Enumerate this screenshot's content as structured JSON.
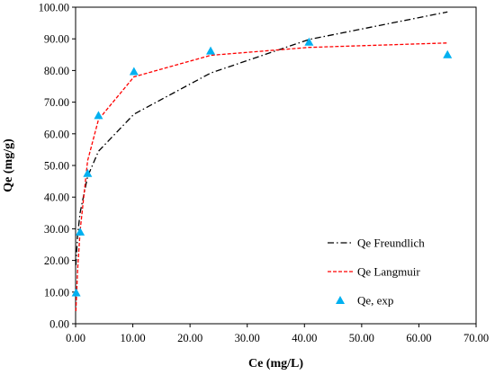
{
  "chart_data": {
    "type": "scatter",
    "xlabel": "Ce (mg/L)",
    "ylabel": "Qe (mg/g)",
    "xlim": [
      0,
      70
    ],
    "ylim": [
      0,
      100
    ],
    "x_ticks": [
      "0.00",
      "10.00",
      "20.00",
      "30.00",
      "40.00",
      "50.00",
      "60.00",
      "70.00"
    ],
    "y_ticks": [
      "0.00",
      "10.00",
      "20.00",
      "30.00",
      "40.00",
      "50.00",
      "60.00",
      "70.00",
      "80.00",
      "90.00",
      "100.00"
    ],
    "grid": false,
    "legend_position": "bottom-right",
    "series": [
      {
        "name": "Qe Freundlich",
        "kind": "line",
        "style": "dash-dot",
        "color": "#000000",
        "x": [
          0.05,
          0.35,
          0.8,
          2.1,
          4.0,
          10.2,
          23.6,
          40.8,
          65.0
        ],
        "y": [
          18.5,
          28.0,
          35.2,
          46.5,
          54.5,
          66.2,
          79.2,
          89.8,
          98.5
        ]
      },
      {
        "name": "Qe Langmuir",
        "kind": "line",
        "style": "dashed",
        "color": "#ff0000",
        "x": [
          0.05,
          0.35,
          0.8,
          2.1,
          4.0,
          10.2,
          23.6,
          40.8,
          65.0
        ],
        "y": [
          4.0,
          17.0,
          29.5,
          51.5,
          64.5,
          78.0,
          84.8,
          87.3,
          88.7
        ]
      },
      {
        "name": "Qe, exp",
        "kind": "marker",
        "marker": "triangle",
        "color": "#00b0f0",
        "x": [
          0.1,
          0.8,
          2.1,
          4.0,
          10.2,
          23.6,
          40.8,
          65.0
        ],
        "y": [
          9.8,
          29.0,
          47.5,
          65.8,
          79.7,
          86.2,
          89.0,
          85.0
        ]
      }
    ]
  }
}
